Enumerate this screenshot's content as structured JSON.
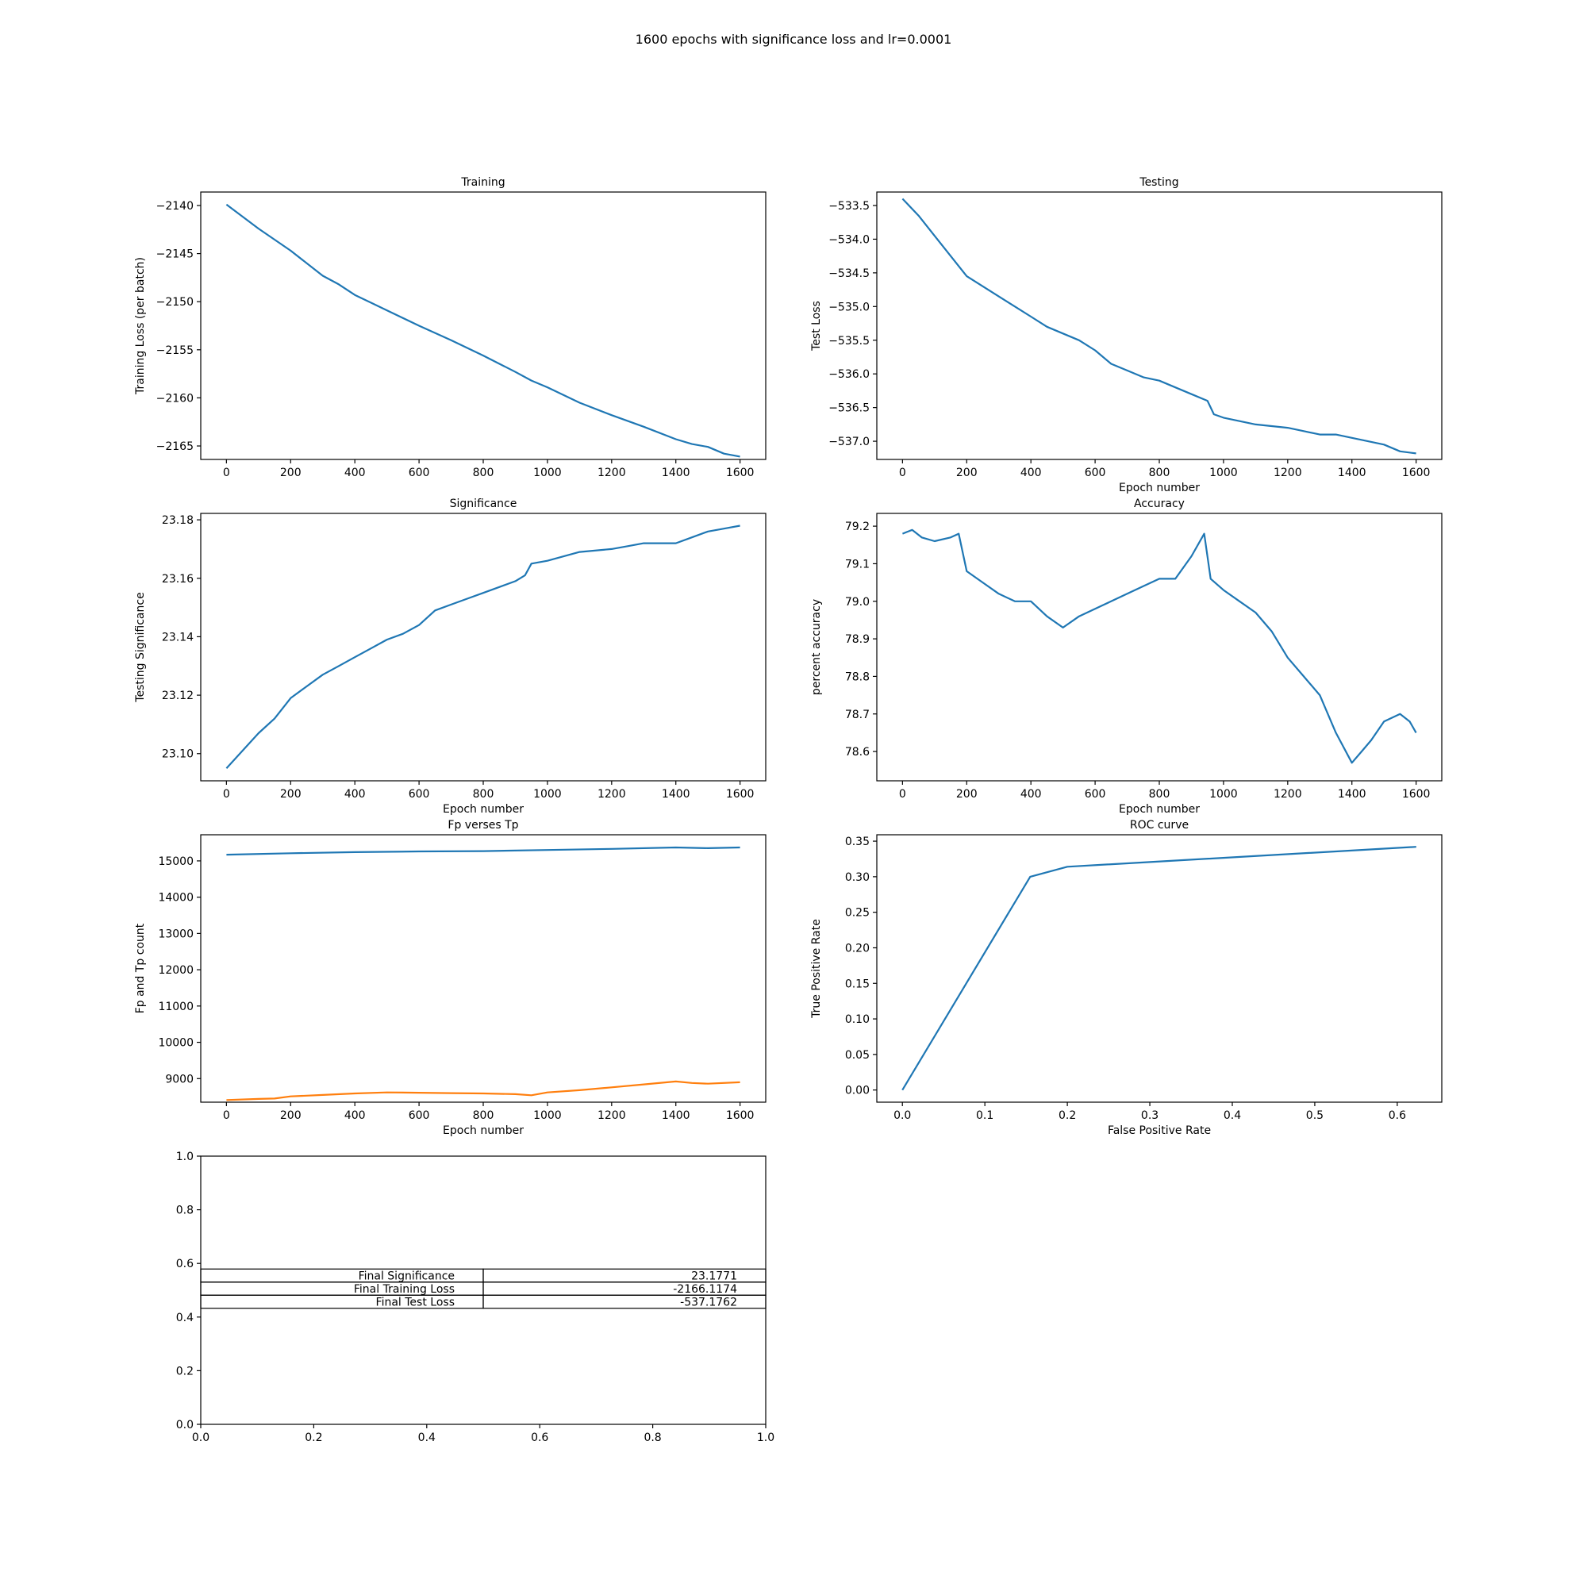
{
  "figure": {
    "suptitle": "1600 epochs with significance loss and lr=0.0001",
    "line_color": "#1f77b4",
    "line_color_2": "#ff7f0e"
  },
  "chart_data": [
    {
      "id": "training",
      "type": "line",
      "title": "Training",
      "xlabel": "",
      "ylabel": "Training Loss (per batch)",
      "xlim": [
        -80,
        1680
      ],
      "ylim": [
        -2166.4,
        -2138.6
      ],
      "xticks": [
        0,
        200,
        400,
        600,
        800,
        1000,
        1200,
        1400,
        1600
      ],
      "yticks": [
        -2140,
        -2145,
        -2150,
        -2155,
        -2160,
        -2165
      ],
      "ytick_labels": [
        "−2140",
        "−2145",
        "−2150",
        "−2155",
        "−2160",
        "−2165"
      ],
      "grid": false,
      "series": [
        {
          "x": [
            0,
            100,
            200,
            300,
            350,
            400,
            500,
            600,
            700,
            800,
            900,
            950,
            1000,
            1100,
            1200,
            1300,
            1400,
            1450,
            1500,
            1550,
            1600
          ],
          "y": [
            -2139.9,
            -2142.4,
            -2144.7,
            -2147.3,
            -2148.2,
            -2149.3,
            -2150.9,
            -2152.5,
            -2154.0,
            -2155.6,
            -2157.3,
            -2158.2,
            -2158.9,
            -2160.5,
            -2161.8,
            -2163.0,
            -2164.3,
            -2164.8,
            -2165.1,
            -2165.8,
            -2166.1
          ]
        }
      ]
    },
    {
      "id": "testing",
      "type": "line",
      "title": "Testing",
      "xlabel": "Epoch number",
      "ylabel": "Test Loss",
      "xlim": [
        -80,
        1680
      ],
      "ylim": [
        -537.27,
        -533.3
      ],
      "xticks": [
        0,
        200,
        400,
        600,
        800,
        1000,
        1200,
        1400,
        1600
      ],
      "yticks": [
        -533.5,
        -534.0,
        -534.5,
        -535.0,
        -535.5,
        -536.0,
        -536.5,
        -537.0
      ],
      "ytick_labels": [
        "−533.5",
        "−534.0",
        "−534.5",
        "−535.0",
        "−535.5",
        "−536.0",
        "−536.5",
        "−537.0"
      ],
      "grid": false,
      "series": [
        {
          "x": [
            0,
            50,
            100,
            150,
            200,
            250,
            300,
            350,
            400,
            450,
            500,
            550,
            600,
            650,
            700,
            750,
            800,
            850,
            900,
            950,
            970,
            1000,
            1100,
            1200,
            1250,
            1300,
            1350,
            1400,
            1450,
            1500,
            1550,
            1600
          ],
          "y": [
            -533.4,
            -533.65,
            -533.95,
            -534.25,
            -534.55,
            -534.7,
            -534.85,
            -535.0,
            -535.15,
            -535.3,
            -535.4,
            -535.5,
            -535.65,
            -535.85,
            -535.95,
            -536.05,
            -536.1,
            -536.2,
            -536.3,
            -536.4,
            -536.6,
            -536.65,
            -536.75,
            -536.8,
            -536.85,
            -536.9,
            -536.9,
            -536.95,
            -537.0,
            -537.05,
            -537.15,
            -537.18
          ]
        }
      ]
    },
    {
      "id": "significance",
      "type": "line",
      "title": "Significance",
      "xlabel": "Epoch number",
      "ylabel": "Testing Significance",
      "xlim": [
        -80,
        1680
      ],
      "ylim": [
        23.0907,
        23.1822
      ],
      "xticks": [
        0,
        200,
        400,
        600,
        800,
        1000,
        1200,
        1400,
        1600
      ],
      "yticks": [
        23.1,
        23.12,
        23.14,
        23.16,
        23.18
      ],
      "ytick_labels": [
        "23.10",
        "23.12",
        "23.14",
        "23.16",
        "23.18"
      ],
      "grid": false,
      "series": [
        {
          "x": [
            0,
            50,
            100,
            150,
            200,
            250,
            300,
            350,
            400,
            450,
            500,
            550,
            600,
            650,
            700,
            750,
            800,
            850,
            900,
            930,
            950,
            1000,
            1100,
            1200,
            1250,
            1300,
            1350,
            1400,
            1450,
            1500,
            1550,
            1600
          ],
          "y": [
            23.095,
            23.101,
            23.107,
            23.112,
            23.119,
            23.123,
            23.127,
            23.13,
            23.133,
            23.136,
            23.139,
            23.141,
            23.144,
            23.149,
            23.151,
            23.153,
            23.155,
            23.157,
            23.159,
            23.161,
            23.165,
            23.166,
            23.169,
            23.17,
            23.171,
            23.172,
            23.172,
            23.172,
            23.174,
            23.176,
            23.177,
            23.178
          ]
        }
      ]
    },
    {
      "id": "accuracy",
      "type": "line",
      "title": "Accuracy",
      "xlabel": "Epoch number",
      "ylabel": "percent accuracy",
      "xlim": [
        -80,
        1680
      ],
      "ylim": [
        78.522,
        79.234
      ],
      "xticks": [
        0,
        200,
        400,
        600,
        800,
        1000,
        1200,
        1400,
        1600
      ],
      "yticks": [
        78.6,
        78.7,
        78.8,
        78.9,
        79.0,
        79.1,
        79.2
      ],
      "ytick_labels": [
        "78.6",
        "78.7",
        "78.8",
        "78.9",
        "79.0",
        "79.1",
        "79.2"
      ],
      "grid": false,
      "series": [
        {
          "x": [
            0,
            30,
            60,
            100,
            150,
            175,
            200,
            250,
            300,
            350,
            400,
            450,
            500,
            550,
            600,
            650,
            700,
            750,
            800,
            850,
            900,
            940,
            960,
            1000,
            1050,
            1100,
            1150,
            1200,
            1250,
            1300,
            1350,
            1400,
            1430,
            1460,
            1500,
            1550,
            1580,
            1600
          ],
          "y": [
            79.18,
            79.19,
            79.17,
            79.16,
            79.17,
            79.18,
            79.08,
            79.05,
            79.02,
            79.0,
            79.0,
            78.96,
            78.93,
            78.96,
            78.98,
            79.0,
            79.02,
            79.04,
            79.06,
            79.06,
            79.12,
            79.18,
            79.06,
            79.03,
            79.0,
            78.97,
            78.92,
            78.85,
            78.8,
            78.75,
            78.65,
            78.57,
            78.6,
            78.63,
            78.68,
            78.7,
            78.68,
            78.65
          ]
        }
      ]
    },
    {
      "id": "fp-tp",
      "type": "line",
      "title": "Fp verses Tp",
      "xlabel": "Epoch number",
      "ylabel": "Fp and Tp count",
      "xlim": [
        -80,
        1680
      ],
      "ylim": [
        8350,
        15720
      ],
      "xticks": [
        0,
        200,
        400,
        600,
        800,
        1000,
        1200,
        1400,
        1600
      ],
      "yticks": [
        9000,
        10000,
        11000,
        12000,
        13000,
        14000,
        15000
      ],
      "ytick_labels": [
        "9000",
        "10000",
        "11000",
        "12000",
        "13000",
        "14000",
        "15000"
      ],
      "grid": false,
      "series": [
        {
          "x": [
            0,
            200,
            400,
            600,
            800,
            1000,
            1200,
            1400,
            1500,
            1600
          ],
          "y": [
            15170,
            15210,
            15240,
            15260,
            15270,
            15300,
            15330,
            15370,
            15350,
            15370
          ]
        },
        {
          "x": [
            0,
            100,
            150,
            200,
            300,
            400,
            500,
            600,
            700,
            800,
            900,
            950,
            1000,
            1100,
            1200,
            1300,
            1400,
            1450,
            1500,
            1600
          ],
          "y": [
            8410,
            8440,
            8450,
            8510,
            8550,
            8590,
            8620,
            8610,
            8600,
            8590,
            8570,
            8540,
            8620,
            8680,
            8760,
            8840,
            8920,
            8880,
            8860,
            8900
          ]
        }
      ]
    },
    {
      "id": "roc",
      "type": "line",
      "title": "ROC curve",
      "xlabel": "False Positive Rate",
      "ylabel": "True Positive Rate",
      "xlim": [
        -0.031,
        0.654
      ],
      "ylim": [
        -0.0171,
        0.359
      ],
      "xticks": [
        0.0,
        0.1,
        0.2,
        0.3,
        0.4,
        0.5,
        0.6
      ],
      "xtick_labels": [
        "0.0",
        "0.1",
        "0.2",
        "0.3",
        "0.4",
        "0.5",
        "0.6"
      ],
      "yticks": [
        0.0,
        0.05,
        0.1,
        0.15,
        0.2,
        0.25,
        0.3,
        0.35
      ],
      "ytick_labels": [
        "0.00",
        "0.05",
        "0.10",
        "0.15",
        "0.20",
        "0.25",
        "0.30",
        "0.35"
      ],
      "grid": false,
      "series": [
        {
          "x": [
            0.0,
            0.155,
            0.2,
            0.623
          ],
          "y": [
            0.0,
            0.3,
            0.314,
            0.342
          ]
        }
      ]
    },
    {
      "id": "summary-table",
      "type": "table",
      "xlim": [
        0,
        1
      ],
      "ylim": [
        0,
        1
      ],
      "xticks": [
        0.0,
        0.2,
        0.4,
        0.6,
        0.8,
        1.0
      ],
      "xtick_labels": [
        "0.0",
        "0.2",
        "0.4",
        "0.6",
        "0.8",
        "1.0"
      ],
      "yticks": [
        0.0,
        0.2,
        0.4,
        0.6,
        0.8,
        1.0
      ],
      "ytick_labels": [
        "0.0",
        "0.2",
        "0.4",
        "0.6",
        "0.8",
        "1.0"
      ],
      "rows": [
        {
          "label": "Final Significance",
          "value": "23.1771"
        },
        {
          "label": "Final Training Loss",
          "value": "-2166.1174"
        },
        {
          "label": "Final Test Loss",
          "value": "-537.1762"
        }
      ]
    }
  ]
}
